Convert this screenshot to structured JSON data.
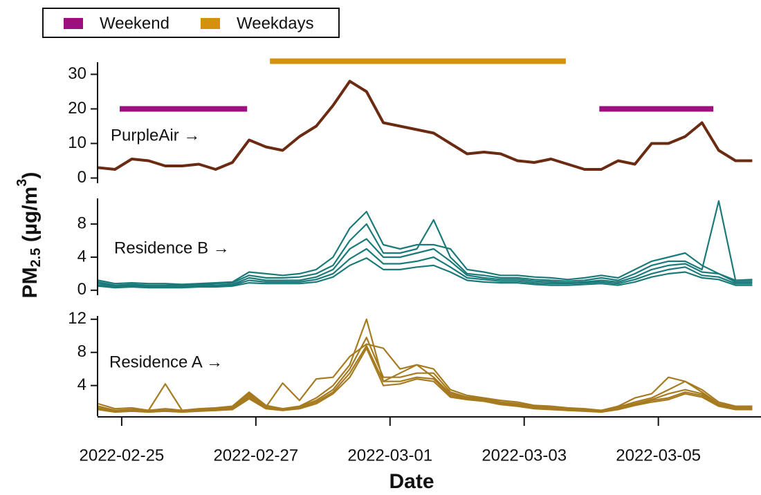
{
  "chart_data": [
    {
      "type": "line",
      "annotation": "PurpleAir →",
      "x": [
        -0.35,
        -0.1,
        0.15,
        0.4,
        0.65,
        0.9,
        1.15,
        1.4,
        1.65,
        1.9,
        2.15,
        2.4,
        2.65,
        2.9,
        3.15,
        3.4,
        3.65,
        3.9,
        4.15,
        4.4,
        4.65,
        4.9,
        5.15,
        5.4,
        5.65,
        5.9,
        6.15,
        6.4,
        6.65,
        6.9,
        7.15,
        7.4,
        7.65,
        7.9,
        8.15,
        8.4,
        8.65,
        8.9,
        9.15,
        9.4
      ],
      "series": [
        {
          "color": "#6b2a12",
          "values": [
            3,
            2.5,
            5.5,
            5,
            3.5,
            3.5,
            4,
            2.5,
            4.5,
            11,
            9,
            8,
            12,
            15,
            21,
            28,
            25,
            16,
            15,
            14,
            13,
            10,
            7,
            7.5,
            7,
            5,
            4.5,
            5.5,
            4,
            2.5,
            2.5,
            5,
            4,
            10,
            10,
            12,
            16,
            8,
            5,
            5
          ]
        }
      ],
      "bands": [
        {
          "name": "Weekend",
          "color": "#9b0f80",
          "y": 20,
          "spans": [
            [
              -0.03,
              1.87
            ],
            [
              7.12,
              8.82
            ]
          ]
        },
        {
          "name": "Weekdays",
          "color": "#d4900e",
          "y": 33.8,
          "spans": [
            [
              2.21,
              6.62
            ]
          ]
        }
      ],
      "ylim": [
        -1.5,
        33.5
      ],
      "yticks": [
        0,
        10,
        20,
        30
      ]
    },
    {
      "type": "line",
      "annotation": "Residence B →",
      "x": [
        -0.35,
        -0.1,
        0.15,
        0.4,
        0.65,
        0.9,
        1.15,
        1.4,
        1.65,
        1.9,
        2.15,
        2.4,
        2.65,
        2.9,
        3.15,
        3.4,
        3.65,
        3.9,
        4.15,
        4.4,
        4.65,
        4.9,
        5.15,
        5.4,
        5.65,
        5.9,
        6.15,
        6.4,
        6.65,
        6.9,
        7.15,
        7.4,
        7.65,
        7.9,
        8.15,
        8.4,
        8.65,
        8.9,
        9.15,
        9.4
      ],
      "series": [
        {
          "color": "#1a7a7a",
          "values": [
            1.2,
            0.8,
            0.9,
            0.8,
            0.8,
            0.7,
            0.8,
            0.9,
            1.0,
            2.2,
            2.0,
            1.8,
            2.0,
            2.5,
            4.0,
            7.5,
            9.5,
            5.5,
            5.0,
            5.5,
            5.5,
            5.0,
            2.5,
            2.2,
            1.8,
            1.8,
            1.6,
            1.5,
            1.3,
            1.5,
            1.8,
            1.5,
            2.5,
            3.5,
            4.0,
            4.5,
            3.0,
            2.0,
            1.2,
            1.3
          ]
        },
        {
          "color": "#1a7a7a",
          "values": [
            1.0,
            0.6,
            0.7,
            0.6,
            0.6,
            0.6,
            0.7,
            0.8,
            0.9,
            1.8,
            1.5,
            1.5,
            1.6,
            2.0,
            3.0,
            6.0,
            8.0,
            4.5,
            4.5,
            5.0,
            8.5,
            4.0,
            2.0,
            1.8,
            1.5,
            1.5,
            1.3,
            1.2,
            1.1,
            1.2,
            1.5,
            1.2,
            2.0,
            3.0,
            3.5,
            3.5,
            2.5,
            10.8,
            1.2,
            1.2
          ]
        },
        {
          "color": "#1a7a7a",
          "values": [
            0.8,
            0.5,
            0.6,
            0.5,
            0.5,
            0.5,
            0.6,
            0.6,
            0.7,
            1.5,
            1.2,
            1.2,
            1.2,
            1.6,
            2.5,
            5.0,
            6.2,
            4.0,
            4.0,
            4.5,
            5.0,
            3.5,
            1.8,
            1.5,
            1.3,
            1.3,
            1.1,
            1.0,
            0.9,
            1.0,
            1.2,
            1.0,
            1.6,
            2.5,
            3.0,
            3.2,
            2.2,
            2.0,
            1.0,
            1.0
          ]
        },
        {
          "color": "#1a7a7a",
          "values": [
            0.6,
            0.4,
            0.5,
            0.4,
            0.4,
            0.4,
            0.5,
            0.5,
            0.6,
            1.2,
            1.0,
            1.0,
            1.0,
            1.3,
            2.0,
            3.8,
            5.0,
            3.2,
            3.2,
            3.5,
            4.0,
            2.8,
            1.5,
            1.3,
            1.1,
            1.1,
            0.9,
            0.8,
            0.8,
            0.9,
            1.0,
            0.8,
            1.3,
            2.0,
            2.5,
            2.8,
            1.8,
            1.6,
            0.8,
            0.8
          ]
        },
        {
          "color": "#1a7a7a",
          "values": [
            0.5,
            0.3,
            0.4,
            0.3,
            0.3,
            0.3,
            0.4,
            0.4,
            0.5,
            0.9,
            0.8,
            0.8,
            0.8,
            1.0,
            1.6,
            3.0,
            3.9,
            2.5,
            2.5,
            2.8,
            3.0,
            2.2,
            1.2,
            1.0,
            0.9,
            0.9,
            0.7,
            0.6,
            0.6,
            0.7,
            0.8,
            0.6,
            1.0,
            1.6,
            2.0,
            2.2,
            1.5,
            1.3,
            0.6,
            0.6
          ]
        }
      ],
      "ylim": [
        -0.6,
        11.1
      ],
      "yticks": [
        0,
        4,
        8
      ],
      "ylabel": {
        "main": "PM",
        "sub": "2.5",
        "rest": " (µg/m",
        "sup": "3",
        "end": ")"
      }
    },
    {
      "type": "line",
      "annotation": "Residence A →",
      "x": [
        -0.35,
        -0.1,
        0.15,
        0.4,
        0.65,
        0.9,
        1.15,
        1.4,
        1.65,
        1.9,
        2.15,
        2.4,
        2.65,
        2.9,
        3.15,
        3.4,
        3.65,
        3.9,
        4.15,
        4.4,
        4.65,
        4.9,
        5.15,
        5.4,
        5.65,
        5.9,
        6.15,
        6.4,
        6.65,
        6.9,
        7.15,
        7.4,
        7.65,
        7.9,
        8.15,
        8.4,
        8.65,
        8.9,
        9.15,
        9.4
      ],
      "series": [
        {
          "color": "#a67a1f",
          "values": [
            1.8,
            1.2,
            1.3,
            1.0,
            4.2,
            1.0,
            1.2,
            1.3,
            1.5,
            3.2,
            1.6,
            1.2,
            1.5,
            2.5,
            4.0,
            6.5,
            12.0,
            4.5,
            5.5,
            6.5,
            6.0,
            3.5,
            2.8,
            2.5,
            2.2,
            2.0,
            1.6,
            1.5,
            1.3,
            1.2,
            1.0,
            1.5,
            2.5,
            3.0,
            5.0,
            4.5,
            3.5,
            2.0,
            1.5,
            1.5
          ]
        },
        {
          "color": "#a67a1f",
          "values": [
            1.5,
            1.0,
            1.1,
            1.0,
            1.2,
            1.0,
            1.1,
            1.2,
            1.4,
            3.0,
            1.5,
            1.2,
            1.4,
            2.2,
            3.5,
            6.0,
            9.8,
            5.0,
            5.0,
            5.5,
            5.5,
            3.2,
            2.6,
            2.4,
            2.0,
            1.8,
            1.5,
            1.4,
            1.2,
            1.1,
            1.0,
            1.4,
            2.0,
            2.5,
            3.5,
            4.5,
            3.2,
            1.8,
            1.4,
            1.4
          ]
        },
        {
          "color": "#a67a1f",
          "values": [
            1.3,
            0.9,
            1.0,
            0.9,
            1.0,
            0.9,
            1.0,
            1.1,
            1.3,
            2.8,
            1.4,
            4.3,
            2.2,
            4.8,
            5.0,
            7.5,
            9.0,
            8.5,
            6.0,
            6.5,
            5.0,
            3.0,
            2.5,
            2.3,
            1.9,
            1.7,
            1.4,
            1.3,
            1.1,
            1.0,
            0.9,
            1.3,
            1.8,
            2.3,
            3.0,
            3.5,
            3.0,
            1.7,
            1.3,
            1.3
          ]
        },
        {
          "color": "#a67a1f",
          "values": [
            1.2,
            0.9,
            1.0,
            0.9,
            1.0,
            0.9,
            1.0,
            1.0,
            1.2,
            2.6,
            1.3,
            1.1,
            1.3,
            2.0,
            3.2,
            5.5,
            8.8,
            4.5,
            4.5,
            5.0,
            4.8,
            2.8,
            2.4,
            2.2,
            1.8,
            1.6,
            1.3,
            1.2,
            1.0,
            1.0,
            0.9,
            1.2,
            1.7,
            2.2,
            2.5,
            3.2,
            2.8,
            1.6,
            1.2,
            1.2
          ]
        },
        {
          "color": "#a67a1f",
          "values": [
            1.1,
            0.8,
            0.9,
            0.8,
            0.9,
            0.8,
            0.9,
            1.0,
            1.1,
            2.4,
            1.2,
            1.0,
            1.2,
            1.8,
            3.0,
            5.0,
            8.5,
            4.0,
            4.2,
            4.8,
            4.5,
            2.6,
            2.3,
            2.1,
            1.7,
            1.5,
            1.2,
            1.1,
            1.0,
            0.9,
            0.8,
            1.1,
            1.6,
            2.0,
            2.3,
            3.0,
            2.6,
            1.5,
            1.1,
            1.1
          ]
        }
      ],
      "ylim": [
        0.3,
        12.4
      ],
      "yticks": [
        4,
        8,
        12
      ],
      "xlim": [
        -0.36,
        9.53
      ],
      "xticks": [
        {
          "value": 0,
          "label": "2022-02-25"
        },
        {
          "value": 2,
          "label": "2022-02-27"
        },
        {
          "value": 4,
          "label": "2022-03-01"
        },
        {
          "value": 6,
          "label": "2022-03-03"
        },
        {
          "value": 8,
          "label": "2022-03-05"
        }
      ],
      "xlabel": "Date"
    }
  ]
}
